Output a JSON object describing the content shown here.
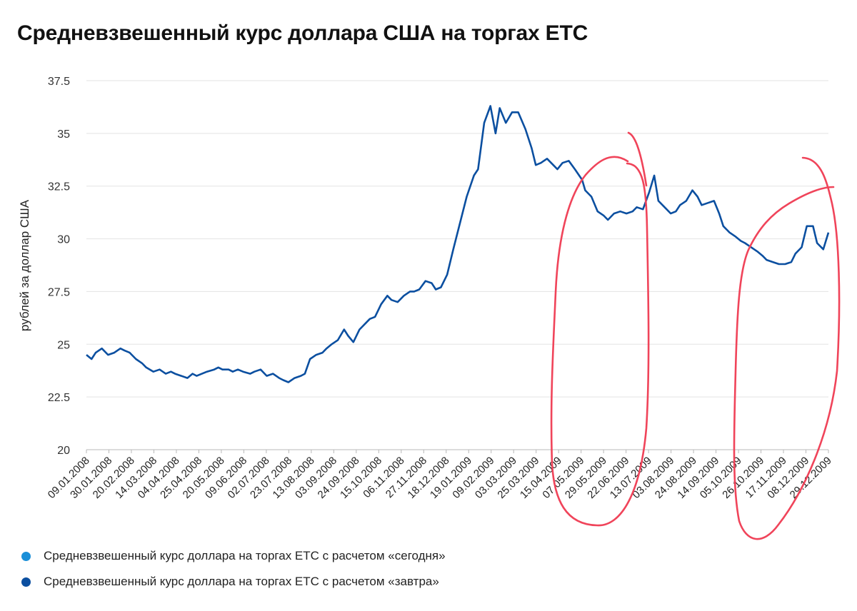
{
  "chart_data": {
    "type": "line",
    "title": "Средневзвешенный курс доллара США на торгах ЕТС",
    "ylabel": "рублей за доллар США",
    "xlabel": "",
    "ylim": [
      20,
      37.5
    ],
    "yticks": [
      "20",
      "22.5",
      "25",
      "27.5",
      "30",
      "32.5",
      "35",
      "37.5"
    ],
    "ytick_values": [
      20,
      22.5,
      25,
      27.5,
      30,
      32.5,
      35,
      37.5
    ],
    "grid": true,
    "legend_position": "bottom-left",
    "x_tick_labels": [
      "09.01.2008",
      "30.01.2008",
      "20.02.2008",
      "14.03.2008",
      "04.04.2008",
      "25.04.2008",
      "20.05.2008",
      "09.06.2008",
      "02.07.2008",
      "23.07.2008",
      "13.08.2008",
      "03.09.2008",
      "24.09.2008",
      "15.10.2008",
      "06.11.2008",
      "27.11.2008",
      "18.12.2008",
      "19.01.2009",
      "09.02.2009",
      "03.03.2009",
      "25.03.2009",
      "15.04.2009",
      "07.05.2009",
      "29.05.2009",
      "22.06.2009",
      "13.07.2009",
      "03.08.2009",
      "24.08.2009",
      "14.09.2009",
      "05.10.2009",
      "26.10.2009",
      "17.11.2009",
      "08.12.2009",
      "29.12.2009"
    ],
    "series": [
      {
        "name": "Средневзвешенный курс доллара на торгах ЕТС с расчетом «сегодня»",
        "color": "#1a8fd8",
        "x": [],
        "values": []
      },
      {
        "name": "Средневзвешенный курс доллара на торгах ЕТС с расчетом «завтра»",
        "color": "#0b4fa0",
        "x": [
          "09.01.2008",
          "14.01.2008",
          "18.01.2008",
          "24.01.2008",
          "30.01.2008",
          "05.02.2008",
          "11.02.2008",
          "15.02.2008",
          "20.02.2008",
          "26.02.2008",
          "03.03.2008",
          "07.03.2008",
          "14.03.2008",
          "20.03.2008",
          "26.03.2008",
          "31.03.2008",
          "04.04.2008",
          "10.04.2008",
          "16.04.2008",
          "21.04.2008",
          "25.04.2008",
          "05.05.2008",
          "12.05.2008",
          "16.05.2008",
          "20.05.2008",
          "26.05.2008",
          "30.05.2008",
          "04.06.2008",
          "09.06.2008",
          "16.06.2008",
          "20.06.2008",
          "26.06.2008",
          "02.07.2008",
          "08.07.2008",
          "14.07.2008",
          "18.07.2008",
          "23.07.2008",
          "29.07.2008",
          "04.08.2008",
          "08.08.2008",
          "13.08.2008",
          "19.08.2008",
          "25.08.2008",
          "29.08.2008",
          "03.09.2008",
          "09.09.2008",
          "15.09.2008",
          "19.09.2008",
          "24.09.2008",
          "30.09.2008",
          "06.10.2008",
          "10.10.2008",
          "15.10.2008",
          "21.10.2008",
          "27.10.2008",
          "31.10.2008",
          "06.11.2008",
          "12.11.2008",
          "18.11.2008",
          "22.11.2008",
          "27.11.2008",
          "03.12.2008",
          "09.12.2008",
          "13.12.2008",
          "18.12.2008",
          "24.12.2008",
          "30.12.2008",
          "12.01.2009",
          "19.01.2009",
          "23.01.2009",
          "29.01.2009",
          "04.02.2009",
          "09.02.2009",
          "13.02.2009",
          "19.02.2009",
          "25.02.2009",
          "03.03.2009",
          "10.03.2009",
          "16.03.2009",
          "20.03.2009",
          "25.03.2009",
          "31.03.2009",
          "06.04.2009",
          "10.04.2009",
          "15.04.2009",
          "21.04.2009",
          "27.04.2009",
          "04.05.2009",
          "07.05.2009",
          "13.05.2009",
          "19.05.2009",
          "25.05.2009",
          "29.05.2009",
          "04.06.2009",
          "10.06.2009",
          "16.06.2009",
          "22.06.2009",
          "26.06.2009",
          "02.07.2009",
          "08.07.2009",
          "13.07.2009",
          "17.07.2009",
          "23.07.2009",
          "29.07.2009",
          "03.08.2009",
          "07.08.2009",
          "13.08.2009",
          "19.08.2009",
          "24.08.2009",
          "28.08.2009",
          "03.09.2009",
          "09.09.2009",
          "14.09.2009",
          "18.09.2009",
          "24.09.2009",
          "30.09.2009",
          "05.10.2009",
          "09.10.2009",
          "15.10.2009",
          "21.10.2009",
          "26.10.2009",
          "30.10.2009",
          "05.11.2009",
          "11.11.2009",
          "17.11.2009",
          "23.11.2009",
          "27.11.2009",
          "03.12.2009",
          "08.12.2009",
          "14.12.2009",
          "18.12.2009",
          "24.12.2009",
          "29.12.2009"
        ],
        "values": [
          24.5,
          24.3,
          24.6,
          24.8,
          24.5,
          24.6,
          24.8,
          24.7,
          24.6,
          24.3,
          24.1,
          23.9,
          23.7,
          23.8,
          23.6,
          23.7,
          23.6,
          23.5,
          23.4,
          23.6,
          23.5,
          23.7,
          23.8,
          23.9,
          23.8,
          23.8,
          23.7,
          23.8,
          23.7,
          23.6,
          23.7,
          23.8,
          23.5,
          23.6,
          23.4,
          23.3,
          23.2,
          23.4,
          23.5,
          23.6,
          24.3,
          24.5,
          24.6,
          24.8,
          25.0,
          25.2,
          25.7,
          25.4,
          25.1,
          25.7,
          26.0,
          26.2,
          26.3,
          26.9,
          27.3,
          27.1,
          27.0,
          27.3,
          27.5,
          27.5,
          27.6,
          28.0,
          27.9,
          27.6,
          27.7,
          28.3,
          29.5,
          32.0,
          33.0,
          33.3,
          35.5,
          36.3,
          35.0,
          36.2,
          35.5,
          36.0,
          36.0,
          35.2,
          34.3,
          33.5,
          33.6,
          33.8,
          33.5,
          33.3,
          33.6,
          33.7,
          33.3,
          32.8,
          32.3,
          32.0,
          31.3,
          31.1,
          30.9,
          31.2,
          31.3,
          31.2,
          31.3,
          31.5,
          31.4,
          32.2,
          33.0,
          31.8,
          31.5,
          31.2,
          31.3,
          31.6,
          31.8,
          32.3,
          32.0,
          31.6,
          31.7,
          31.8,
          31.2,
          30.6,
          30.3,
          30.1,
          29.9,
          29.8,
          29.6,
          29.4,
          29.2,
          29.0,
          28.9,
          28.8,
          28.8,
          28.9,
          29.3,
          29.6,
          30.6,
          30.6,
          29.8,
          29.5,
          30.3
        ]
      }
    ]
  },
  "legend": [
    {
      "label": "Средневзвешенный курс доллара на торгах ЕТС с расчетом «сегодня»",
      "color": "#1a8fd8"
    },
    {
      "label": "Средневзвешенный курс доллара на торгах ЕТС с расчетом «завтра»",
      "color": "#0b4fa0"
    }
  ],
  "annotations": {
    "color": "#f0445a",
    "shape": "two hand-drawn red ellipses"
  }
}
